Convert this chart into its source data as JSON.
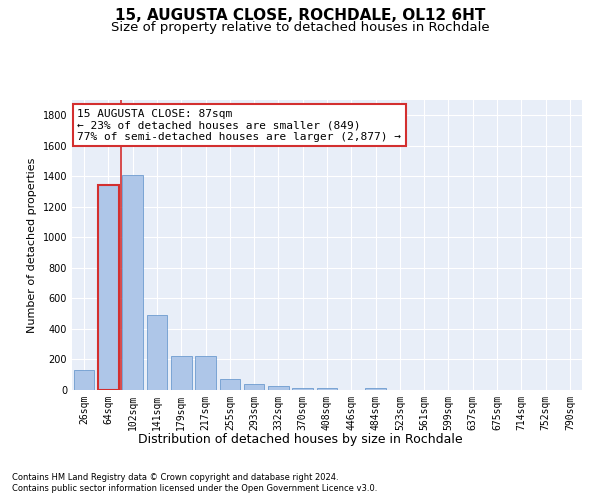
{
  "title_line1": "15, AUGUSTA CLOSE, ROCHDALE, OL12 6HT",
  "title_line2": "Size of property relative to detached houses in Rochdale",
  "xlabel": "Distribution of detached houses by size in Rochdale",
  "ylabel": "Number of detached properties",
  "bar_labels": [
    "26sqm",
    "64sqm",
    "102sqm",
    "141sqm",
    "179sqm",
    "217sqm",
    "255sqm",
    "293sqm",
    "332sqm",
    "370sqm",
    "408sqm",
    "446sqm",
    "484sqm",
    "523sqm",
    "561sqm",
    "599sqm",
    "637sqm",
    "675sqm",
    "714sqm",
    "752sqm",
    "790sqm"
  ],
  "bar_values": [
    130,
    1340,
    1410,
    490,
    225,
    225,
    70,
    40,
    25,
    15,
    15,
    0,
    15,
    0,
    0,
    0,
    0,
    0,
    0,
    0,
    0
  ],
  "bar_color": "#aec6e8",
  "bar_edge_color": "#5b8fc9",
  "highlight_bar_index": 1,
  "highlight_color": "#d32f2f",
  "vline_x": 1.5,
  "ylim": [
    0,
    1900
  ],
  "yticks": [
    0,
    200,
    400,
    600,
    800,
    1000,
    1200,
    1400,
    1600,
    1800
  ],
  "annotation_text": "15 AUGUSTA CLOSE: 87sqm\n← 23% of detached houses are smaller (849)\n77% of semi-detached houses are larger (2,877) →",
  "annotation_box_color": "#ffffff",
  "annotation_box_edge": "#d32f2f",
  "footer_line1": "Contains HM Land Registry data © Crown copyright and database right 2024.",
  "footer_line2": "Contains public sector information licensed under the Open Government Licence v3.0.",
  "background_color": "#ffffff",
  "plot_bg_color": "#e8eef8",
  "grid_color": "#ffffff",
  "title_fontsize": 11,
  "subtitle_fontsize": 9.5,
  "tick_fontsize": 7,
  "ylabel_fontsize": 8,
  "xlabel_fontsize": 9,
  "annotation_fontsize": 8,
  "footer_fontsize": 6,
  "figsize": [
    6.0,
    5.0
  ],
  "dpi": 100
}
